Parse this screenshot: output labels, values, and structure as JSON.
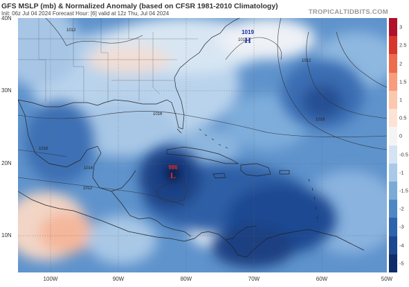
{
  "header": {
    "title": "GFS MSLP (mb) & Normalized Anomaly (based on CFSR 1981-2010 Climatology)",
    "subtitle": "Init: 06z Jul 04 2024   Forecast Hour: [6]   valid at 12z Thu, Jul 04 2024",
    "brand": "TROPICALTIDBITS.COM"
  },
  "axes": {
    "lat_labels": [
      "40N",
      "30N",
      "20N",
      "10N"
    ],
    "lon_labels": [
      "100W",
      "90W",
      "80W",
      "70W",
      "60W",
      "50W"
    ]
  },
  "pressure_systems": [
    {
      "type": "H",
      "label": "H",
      "value": "1019",
      "color": "#1a2a9c"
    },
    {
      "type": "L",
      "label": "L",
      "value": "986",
      "color": "#d11a1a"
    }
  ],
  "isobar_labels": [
    "1012",
    "1016",
    "1016",
    "1012",
    "1016",
    "1012",
    "1012",
    "1016"
  ],
  "colorbar": {
    "ticks": [
      "3",
      "2.5",
      "2",
      "1.5",
      "1",
      "0.5",
      "0",
      "-0.5",
      "-1",
      "-1.5",
      "-2",
      "-3",
      "-4",
      "-5"
    ],
    "colors": [
      "#b0102a",
      "#d8362c",
      "#ee6b4d",
      "#f89c7c",
      "#fbc7ad",
      "#fde3d5",
      "#f4f4f4",
      "#d5e3f2",
      "#a9c9e8",
      "#7aaad8",
      "#4f87c5",
      "#2d63ad",
      "#1b4690",
      "#0f2c6a"
    ]
  }
}
